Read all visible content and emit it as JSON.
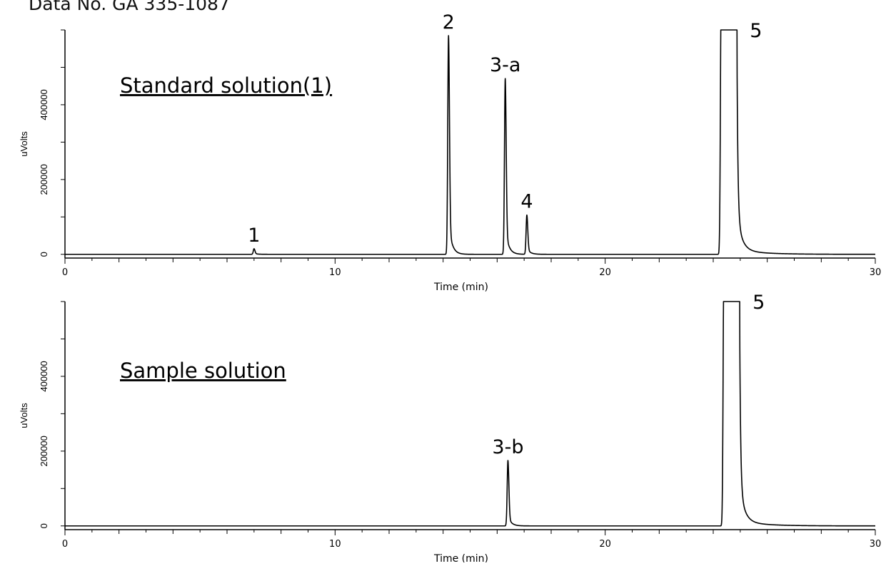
{
  "header": {
    "data_no": "Data No. GA 335-1087"
  },
  "chart_data": [
    {
      "type": "line",
      "title": "Standard solution(1)",
      "xlabel": "Time (min)",
      "ylabel": "uVolts",
      "xlim": [
        0,
        30
      ],
      "ylim": [
        -10000,
        600000
      ],
      "x_ticks": [
        0,
        10,
        20,
        30
      ],
      "y_ticks": [
        0,
        200000,
        400000
      ],
      "grid": false,
      "peaks": [
        {
          "label": "1",
          "time": 7.0,
          "height": 15000
        },
        {
          "label": "2",
          "time": 14.2,
          "height": 585000
        },
        {
          "label": "3-a",
          "time": 16.3,
          "height": 470000
        },
        {
          "label": "4",
          "time": 17.1,
          "height": 105000
        },
        {
          "label": "5",
          "time": 24.3,
          "height": 600000,
          "off_scale": true
        }
      ]
    },
    {
      "type": "line",
      "title": "Sample solution",
      "xlabel": "Time (min)",
      "ylabel": "uVolts",
      "xlim": [
        0,
        30
      ],
      "ylim": [
        -10000,
        600000
      ],
      "x_ticks": [
        0,
        10,
        20,
        30
      ],
      "y_ticks": [
        0,
        200000,
        400000
      ],
      "grid": false,
      "peaks": [
        {
          "label": "3-b",
          "time": 16.4,
          "height": 175000
        },
        {
          "label": "5",
          "time": 24.4,
          "height": 600000,
          "off_scale": true
        }
      ]
    }
  ]
}
